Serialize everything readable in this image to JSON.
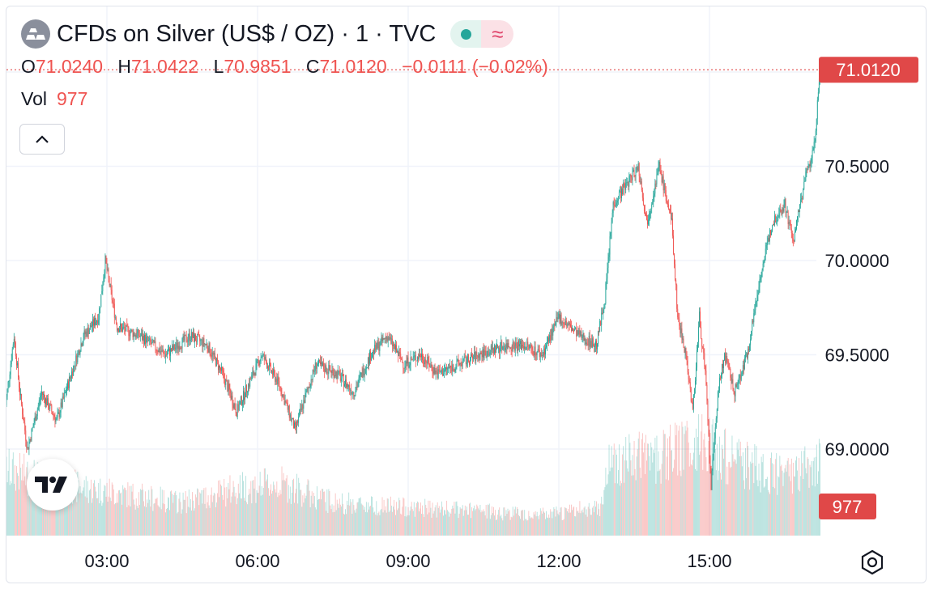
{
  "header": {
    "title": "CFDs on Silver (US$ / OZ) · 1 · TVC",
    "market_status_icon": "green-dot",
    "delayed_icon": "≈"
  },
  "ohlc": {
    "o_label": "O",
    "o_value": "71.0240",
    "h_label": "H",
    "h_value": "71.0422",
    "l_label": "L",
    "l_value": "70.9851",
    "c_label": "C",
    "c_value": "71.0120",
    "change": "−0.0111 (−0.02%)"
  },
  "volume": {
    "label": "Vol",
    "value": "977"
  },
  "colors": {
    "up": "#26a69a",
    "down": "#ef5350",
    "grid": "#f0f3fa",
    "text": "#131722",
    "price_tag": "#e04848"
  },
  "chart_data": {
    "type": "candlestick",
    "interval": "1 minute",
    "y_ticks": [
      "71.0000",
      "70.5000",
      "70.0000",
      "69.5000",
      "69.0000"
    ],
    "x_ticks": [
      "03:00",
      "06:00",
      "09:00",
      "12:00",
      "15:00"
    ],
    "ylim": [
      68.6,
      71.2
    ],
    "last_price": "71.0120",
    "last_volume": "977",
    "price_path": [
      [
        "00:58",
        69.2
      ],
      [
        "01:09",
        69.6
      ],
      [
        "01:16",
        69.3
      ],
      [
        "01:25",
        69.0
      ],
      [
        "01:42",
        69.3
      ],
      [
        "02:00",
        69.15
      ],
      [
        "02:14",
        69.35
      ],
      [
        "02:32",
        69.6
      ],
      [
        "02:50",
        69.7
      ],
      [
        "02:58",
        70.0
      ],
      [
        "03:12",
        69.65
      ],
      [
        "03:40",
        69.6
      ],
      [
        "04:10",
        69.5
      ],
      [
        "04:40",
        69.6
      ],
      [
        "05:00",
        69.55
      ],
      [
        "05:18",
        69.4
      ],
      [
        "05:35",
        69.2
      ],
      [
        "06:05",
        69.5
      ],
      [
        "06:25",
        69.35
      ],
      [
        "06:45",
        69.1
      ],
      [
        "06:55",
        69.25
      ],
      [
        "07:10",
        69.45
      ],
      [
        "07:35",
        69.4
      ],
      [
        "07:55",
        69.3
      ],
      [
        "08:15",
        69.5
      ],
      [
        "08:35",
        69.6
      ],
      [
        "08:55",
        69.45
      ],
      [
        "09:15",
        69.5
      ],
      [
        "09:35",
        69.4
      ],
      [
        "10:00",
        69.45
      ],
      [
        "10:25",
        69.5
      ],
      [
        "10:55",
        69.55
      ],
      [
        "11:20",
        69.55
      ],
      [
        "11:40",
        69.5
      ],
      [
        "12:00",
        69.7
      ],
      [
        "12:25",
        69.6
      ],
      [
        "12:45",
        69.55
      ],
      [
        "12:55",
        69.8
      ],
      [
        "13:05",
        70.3
      ],
      [
        "13:20",
        70.4
      ],
      [
        "13:35",
        70.5
      ],
      [
        "13:45",
        70.2
      ],
      [
        "14:00",
        70.5
      ],
      [
        "14:15",
        70.2
      ],
      [
        "14:22",
        69.7
      ],
      [
        "14:32",
        69.5
      ],
      [
        "14:40",
        69.2
      ],
      [
        "14:48",
        69.7
      ],
      [
        "14:55",
        69.4
      ],
      [
        "15:02",
        68.8
      ],
      [
        "15:10",
        69.3
      ],
      [
        "15:18",
        69.5
      ],
      [
        "15:30",
        69.3
      ],
      [
        "15:45",
        69.5
      ],
      [
        "16:00",
        69.9
      ],
      [
        "16:15",
        70.2
      ],
      [
        "16:30",
        70.3
      ],
      [
        "16:40",
        70.1
      ],
      [
        "16:55",
        70.45
      ],
      [
        "17:05",
        70.6
      ],
      [
        "17:12",
        71.0
      ]
    ],
    "volume_path": [
      [
        "00:58",
        900
      ],
      [
        "02:00",
        700
      ],
      [
        "03:00",
        600
      ],
      [
        "04:30",
        450
      ],
      [
        "05:40",
        650
      ],
      [
        "06:30",
        700
      ],
      [
        "07:30",
        450
      ],
      [
        "09:00",
        380
      ],
      [
        "10:30",
        330
      ],
      [
        "11:50",
        280
      ],
      [
        "12:50",
        400
      ],
      [
        "13:00",
        1000
      ],
      [
        "14:10",
        1100
      ],
      [
        "14:50",
        1300
      ],
      [
        "15:30",
        1000
      ],
      [
        "16:30",
        800
      ],
      [
        "17:12",
        977
      ]
    ],
    "volume_max": 1400
  }
}
